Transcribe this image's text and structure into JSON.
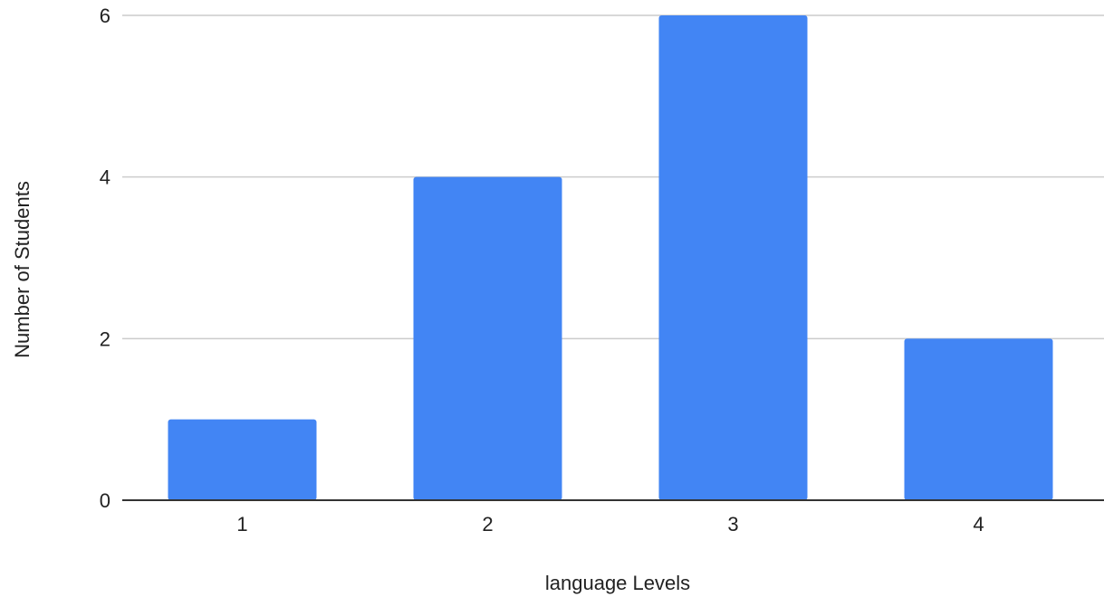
{
  "chart_data": {
    "type": "bar",
    "title": "",
    "xlabel": "language Levels",
    "ylabel": "Number of Students",
    "categories": [
      "1",
      "2",
      "3",
      "4"
    ],
    "series": [
      {
        "values": [
          1,
          4,
          6,
          2
        ]
      }
    ],
    "ylim": [
      0,
      6
    ],
    "yticks": [
      0,
      2,
      4,
      6
    ],
    "grid": true,
    "legend": "none",
    "bar_color": "#4285f4",
    "grid_color": "#cccccc",
    "axis_color": "#333333"
  }
}
